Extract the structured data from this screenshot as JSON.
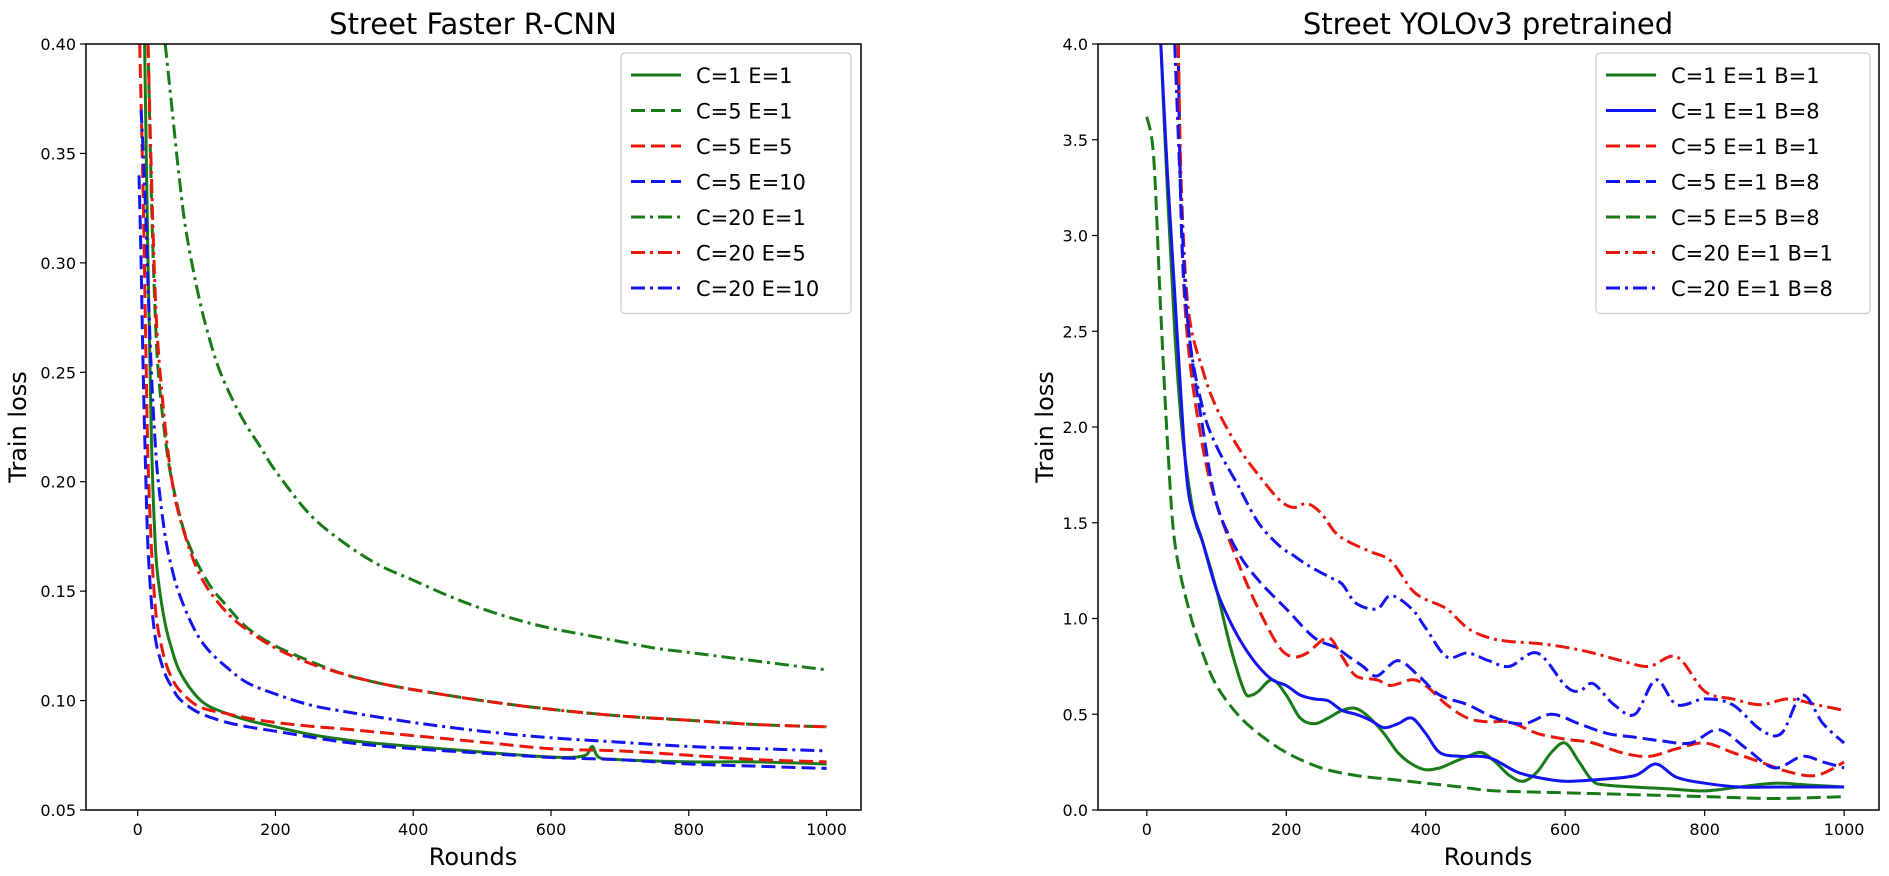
{
  "chart_data": [
    {
      "type": "line",
      "title": "Street Faster R-CNN",
      "xlabel": "Rounds",
      "ylabel": "Train loss",
      "xlim": [
        -75,
        1050
      ],
      "ylim": [
        0.05,
        0.4
      ],
      "xticks": [
        0,
        200,
        400,
        600,
        800,
        1000
      ],
      "xtick_labels": [
        "0",
        "200",
        "400",
        "600",
        "800",
        "1000"
      ],
      "yticks": [
        0.05,
        0.1,
        0.15,
        0.2,
        0.25,
        0.3,
        0.35,
        0.4
      ],
      "ytick_labels": [
        "0.05",
        "0.10",
        "0.15",
        "0.20",
        "0.25",
        "0.30",
        "0.35",
        "0.40"
      ],
      "legend_position": "upper right",
      "grid": false,
      "series": [
        {
          "name": "C=1 E=1",
          "color": "#1a7a1a",
          "dash": "solid",
          "x": [
            10,
            15,
            20,
            25,
            30,
            40,
            50,
            60,
            80,
            100,
            130,
            160,
            200,
            260,
            330,
            400,
            480,
            560,
            620,
            650,
            660,
            670,
            700,
            800,
            900,
            1000
          ],
          "y": [
            0.4,
            0.3,
            0.22,
            0.175,
            0.155,
            0.135,
            0.123,
            0.114,
            0.104,
            0.098,
            0.094,
            0.091,
            0.088,
            0.084,
            0.081,
            0.079,
            0.077,
            0.075,
            0.074,
            0.075,
            0.079,
            0.074,
            0.073,
            0.072,
            0.072,
            0.071
          ]
        },
        {
          "name": "C=5 E=1",
          "color": "#1a7a1a",
          "dash": "dashed",
          "x": [
            15,
            20,
            25,
            30,
            40,
            50,
            70,
            100,
            130,
            160,
            200,
            250,
            300,
            350,
            400,
            500,
            600,
            700,
            800,
            900,
            1000
          ],
          "y": [
            0.4,
            0.33,
            0.28,
            0.25,
            0.22,
            0.2,
            0.175,
            0.155,
            0.143,
            0.133,
            0.125,
            0.118,
            0.112,
            0.108,
            0.105,
            0.1,
            0.096,
            0.093,
            0.091,
            0.089,
            0.088
          ]
        },
        {
          "name": "C=5 E=5",
          "color": "#e8180c",
          "dash": "dashed",
          "x": [
            3,
            8,
            12,
            15,
            20,
            25,
            30,
            40,
            50,
            60,
            80,
            100,
            130,
            160,
            200,
            260,
            300,
            400,
            500,
            600,
            700,
            800,
            900,
            1000
          ],
          "y": [
            0.4,
            0.33,
            0.26,
            0.21,
            0.17,
            0.145,
            0.132,
            0.118,
            0.11,
            0.105,
            0.099,
            0.096,
            0.094,
            0.092,
            0.09,
            0.088,
            0.087,
            0.084,
            0.081,
            0.078,
            0.077,
            0.075,
            0.073,
            0.072
          ]
        },
        {
          "name": "C=5 E=10",
          "color": "#1414ee",
          "dash": "dashed",
          "x": [
            2,
            5,
            8,
            12,
            15,
            20,
            25,
            30,
            40,
            50,
            60,
            80,
            100,
            130,
            160,
            200,
            300,
            400,
            500,
            600,
            700,
            800,
            900,
            1000
          ],
          "y": [
            0.34,
            0.3,
            0.25,
            0.2,
            0.17,
            0.145,
            0.13,
            0.122,
            0.112,
            0.106,
            0.101,
            0.096,
            0.093,
            0.09,
            0.088,
            0.086,
            0.081,
            0.078,
            0.076,
            0.074,
            0.073,
            0.071,
            0.07,
            0.069
          ]
        },
        {
          "name": "C=20 E=1",
          "color": "#1a7a1a",
          "dash": "dashdot",
          "x": [
            40,
            50,
            60,
            70,
            85,
            100,
            120,
            150,
            180,
            200,
            250,
            300,
            350,
            400,
            450,
            500,
            550,
            600,
            650,
            700,
            750,
            800,
            850,
            900,
            950,
            1000
          ],
          "y": [
            0.4,
            0.37,
            0.34,
            0.315,
            0.29,
            0.27,
            0.25,
            0.23,
            0.215,
            0.205,
            0.185,
            0.172,
            0.162,
            0.155,
            0.148,
            0.142,
            0.137,
            0.133,
            0.13,
            0.127,
            0.124,
            0.122,
            0.12,
            0.118,
            0.116,
            0.114
          ]
        },
        {
          "name": "C=20 E=5",
          "color": "#e8180c",
          "dash": "dashdot",
          "x": [
            15,
            20,
            25,
            30,
            40,
            50,
            60,
            80,
            100,
            130,
            160,
            200,
            250,
            300,
            350,
            400,
            500,
            600,
            700,
            800,
            900,
            1000
          ],
          "y": [
            0.4,
            0.34,
            0.29,
            0.26,
            0.225,
            0.2,
            0.185,
            0.165,
            0.152,
            0.14,
            0.132,
            0.124,
            0.117,
            0.112,
            0.108,
            0.105,
            0.1,
            0.096,
            0.093,
            0.091,
            0.089,
            0.088
          ]
        },
        {
          "name": "C=20 E=10",
          "color": "#1414ee",
          "dash": "dashdot",
          "x": [
            5,
            8,
            12,
            15,
            20,
            25,
            30,
            40,
            50,
            60,
            80,
            100,
            130,
            160,
            200,
            250,
            300,
            400,
            500,
            600,
            700,
            800,
            900,
            1000
          ],
          "y": [
            0.37,
            0.35,
            0.32,
            0.29,
            0.25,
            0.22,
            0.2,
            0.175,
            0.16,
            0.149,
            0.134,
            0.124,
            0.115,
            0.108,
            0.103,
            0.098,
            0.095,
            0.09,
            0.086,
            0.083,
            0.081,
            0.079,
            0.078,
            0.077
          ]
        }
      ]
    },
    {
      "type": "line",
      "title": "Street YOLOv3 pretrained",
      "xlabel": "Rounds",
      "ylabel": "Train loss",
      "xlim": [
        -70,
        1050
      ],
      "ylim": [
        0.0,
        4.0
      ],
      "xticks": [
        0,
        200,
        400,
        600,
        800,
        1000
      ],
      "xtick_labels": [
        "0",
        "200",
        "400",
        "600",
        "800",
        "1000"
      ],
      "yticks": [
        0.0,
        0.5,
        1.0,
        1.5,
        2.0,
        2.5,
        3.0,
        3.5,
        4.0
      ],
      "ytick_labels": [
        "0.0",
        "0.5",
        "1.0",
        "1.5",
        "2.0",
        "2.5",
        "3.0",
        "3.5",
        "4.0"
      ],
      "legend_position": "upper right",
      "grid": false,
      "series": [
        {
          "name": "C=1 E=1 B=1",
          "color": "#1a7a1a",
          "dash": "solid",
          "x": [
            20,
            30,
            40,
            50,
            60,
            70,
            80,
            100,
            120,
            140,
            150,
            160,
            180,
            200,
            220,
            240,
            260,
            280,
            300,
            320,
            340,
            360,
            380,
            400,
            420,
            440,
            460,
            480,
            500,
            520,
            540,
            560,
            580,
            600,
            620,
            640,
            660,
            700,
            750,
            800,
            850,
            900,
            950,
            1000
          ],
          "y": [
            4.0,
            3.2,
            2.5,
            2.0,
            1.7,
            1.5,
            1.4,
            1.15,
            0.85,
            0.62,
            0.6,
            0.62,
            0.68,
            0.6,
            0.48,
            0.45,
            0.48,
            0.52,
            0.53,
            0.48,
            0.4,
            0.3,
            0.24,
            0.21,
            0.22,
            0.25,
            0.28,
            0.3,
            0.25,
            0.18,
            0.15,
            0.2,
            0.3,
            0.35,
            0.25,
            0.15,
            0.13,
            0.12,
            0.11,
            0.1,
            0.12,
            0.14,
            0.13,
            0.12
          ]
        },
        {
          "name": "C=1 E=1 B=8",
          "color": "#1414ee",
          "dash": "solid",
          "x": [
            20,
            30,
            40,
            50,
            60,
            80,
            100,
            120,
            140,
            160,
            180,
            200,
            220,
            240,
            260,
            280,
            300,
            320,
            340,
            360,
            380,
            400,
            420,
            450,
            480,
            500,
            530,
            560,
            600,
            650,
            700,
            730,
            760,
            800,
            850,
            900,
            950,
            1000
          ],
          "y": [
            4.0,
            3.3,
            2.7,
            2.1,
            1.65,
            1.4,
            1.15,
            0.98,
            0.85,
            0.75,
            0.68,
            0.65,
            0.6,
            0.58,
            0.57,
            0.52,
            0.5,
            0.47,
            0.43,
            0.45,
            0.48,
            0.4,
            0.3,
            0.28,
            0.28,
            0.26,
            0.2,
            0.17,
            0.15,
            0.16,
            0.18,
            0.24,
            0.17,
            0.14,
            0.12,
            0.12,
            0.12,
            0.12
          ]
        },
        {
          "name": "C=5 E=1 B=1",
          "color": "#e8180c",
          "dash": "dashed",
          "x": [
            45,
            50,
            60,
            80,
            100,
            130,
            160,
            190,
            210,
            230,
            260,
            280,
            300,
            330,
            350,
            380,
            400,
            430,
            460,
            490,
            520,
            560,
            600,
            640,
            680,
            720,
            760,
            800,
            840,
            880,
            920,
            960,
            1000
          ],
          "y": [
            4.0,
            3.0,
            2.4,
            1.9,
            1.6,
            1.3,
            1.05,
            0.85,
            0.8,
            0.82,
            0.9,
            0.8,
            0.7,
            0.68,
            0.65,
            0.68,
            0.65,
            0.55,
            0.48,
            0.46,
            0.46,
            0.4,
            0.37,
            0.35,
            0.3,
            0.28,
            0.32,
            0.35,
            0.3,
            0.25,
            0.2,
            0.18,
            0.25
          ]
        },
        {
          "name": "C=5 E=1 B=8",
          "color": "#1414ee",
          "dash": "dashed",
          "x": [
            45,
            50,
            60,
            80,
            100,
            130,
            160,
            200,
            240,
            270,
            290,
            310,
            330,
            360,
            390,
            420,
            460,
            500,
            540,
            580,
            620,
            660,
            700,
            740,
            780,
            820,
            860,
            900,
            940,
            970,
            1000
          ],
          "y": [
            4.0,
            3.0,
            2.5,
            2.0,
            1.6,
            1.35,
            1.2,
            1.05,
            0.9,
            0.85,
            0.8,
            0.75,
            0.7,
            0.78,
            0.7,
            0.6,
            0.55,
            0.48,
            0.45,
            0.5,
            0.45,
            0.4,
            0.38,
            0.36,
            0.35,
            0.42,
            0.32,
            0.22,
            0.28,
            0.25,
            0.22
          ]
        },
        {
          "name": "C=5 E=5 B=8",
          "color": "#1a7a1a",
          "dash": "dashed",
          "x": [
            0,
            10,
            20,
            30,
            40,
            60,
            80,
            100,
            130,
            160,
            200,
            250,
            300,
            350,
            400,
            450,
            500,
            600,
            700,
            800,
            900,
            1000
          ],
          "y": [
            3.62,
            3.4,
            2.6,
            1.9,
            1.4,
            1.05,
            0.82,
            0.65,
            0.5,
            0.4,
            0.3,
            0.22,
            0.18,
            0.16,
            0.14,
            0.12,
            0.1,
            0.09,
            0.08,
            0.07,
            0.06,
            0.07
          ]
        },
        {
          "name": "C=20 E=1 B=1",
          "color": "#e8180c",
          "dash": "dashdot",
          "x": [
            45,
            50,
            60,
            80,
            100,
            130,
            160,
            190,
            210,
            230,
            250,
            270,
            290,
            320,
            350,
            380,
            400,
            430,
            460,
            490,
            520,
            560,
            600,
            640,
            680,
            720,
            760,
            800,
            840,
            880,
            920,
            960,
            1000
          ],
          "y": [
            4.0,
            3.2,
            2.6,
            2.3,
            2.1,
            1.9,
            1.75,
            1.62,
            1.58,
            1.6,
            1.55,
            1.45,
            1.4,
            1.35,
            1.3,
            1.15,
            1.1,
            1.05,
            0.95,
            0.9,
            0.88,
            0.87,
            0.85,
            0.82,
            0.78,
            0.75,
            0.8,
            0.62,
            0.58,
            0.55,
            0.58,
            0.55,
            0.52
          ]
        },
        {
          "name": "C=20 E=1 B=8",
          "color": "#1414ee",
          "dash": "dashdot",
          "x": [
            40,
            50,
            60,
            80,
            100,
            130,
            160,
            190,
            210,
            230,
            260,
            280,
            300,
            330,
            350,
            380,
            400,
            430,
            460,
            490,
            520,
            560,
            600,
            620,
            640,
            670,
            700,
            730,
            760,
            800,
            840,
            880,
            910,
            940,
            970,
            1000
          ],
          "y": [
            4.0,
            3.1,
            2.5,
            2.1,
            1.9,
            1.7,
            1.5,
            1.38,
            1.33,
            1.28,
            1.22,
            1.18,
            1.08,
            1.05,
            1.12,
            1.05,
            0.95,
            0.8,
            0.82,
            0.78,
            0.75,
            0.82,
            0.65,
            0.62,
            0.66,
            0.55,
            0.5,
            0.68,
            0.55,
            0.58,
            0.55,
            0.42,
            0.4,
            0.6,
            0.45,
            0.35
          ]
        }
      ]
    }
  ]
}
